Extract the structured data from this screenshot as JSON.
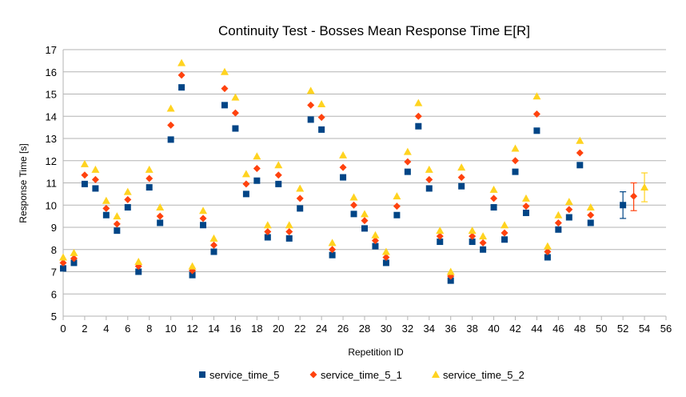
{
  "chart_data": {
    "type": "scatter",
    "title": "Continuity Test - Bosses Mean Response Time E[R]",
    "xlabel": "Repetition ID",
    "ylabel": "Response Time [s]",
    "xlim": [
      0,
      56
    ],
    "ylim": [
      5,
      17
    ],
    "xticks": [
      0,
      2,
      4,
      6,
      8,
      10,
      12,
      14,
      16,
      18,
      20,
      22,
      24,
      26,
      28,
      30,
      32,
      34,
      36,
      38,
      40,
      42,
      44,
      46,
      48,
      50,
      52,
      54,
      56
    ],
    "yticks": [
      5,
      6,
      7,
      8,
      9,
      10,
      11,
      12,
      13,
      14,
      15,
      16,
      17
    ],
    "grid": "horizontal",
    "legend_position": "bottom",
    "x": [
      0,
      1,
      2,
      3,
      4,
      5,
      6,
      7,
      8,
      9,
      10,
      11,
      12,
      13,
      14,
      15,
      16,
      17,
      18,
      19,
      20,
      21,
      22,
      23,
      24,
      25,
      26,
      27,
      28,
      29,
      30,
      31,
      32,
      33,
      34,
      35,
      36,
      37,
      38,
      39,
      40,
      41,
      42,
      43,
      44,
      45,
      46,
      47,
      48,
      49
    ],
    "series": [
      {
        "name": "service_time_5",
        "marker": "square",
        "color": "#004586",
        "values": [
          7.15,
          7.4,
          10.95,
          10.75,
          9.55,
          8.85,
          9.9,
          7.0,
          10.8,
          9.2,
          12.95,
          15.3,
          6.85,
          9.1,
          7.9,
          14.5,
          13.45,
          10.5,
          11.1,
          8.55,
          10.95,
          8.5,
          9.85,
          13.85,
          13.4,
          7.75,
          11.25,
          9.6,
          8.95,
          8.15,
          7.4,
          9.55,
          11.5,
          13.55,
          10.75,
          8.35,
          6.6,
          10.85,
          8.35,
          8.0,
          9.9,
          8.45,
          11.5,
          9.65,
          13.35,
          7.65,
          8.9,
          9.45,
          11.8,
          9.2
        ],
        "error_point": {
          "x": 52,
          "y": 10.0,
          "low": 9.4,
          "high": 10.6
        }
      },
      {
        "name": "service_time_5_1",
        "marker": "diamond",
        "color": "#ff420e",
        "values": [
          7.4,
          7.6,
          11.35,
          11.15,
          9.85,
          9.15,
          10.25,
          7.25,
          11.2,
          9.5,
          13.6,
          15.85,
          7.05,
          9.4,
          8.2,
          15.25,
          14.15,
          10.95,
          11.65,
          8.8,
          11.35,
          8.8,
          10.3,
          14.5,
          13.95,
          8.0,
          11.7,
          10.0,
          9.3,
          8.4,
          7.65,
          9.95,
          11.95,
          14.0,
          11.15,
          8.6,
          6.8,
          11.25,
          8.6,
          8.3,
          10.3,
          8.75,
          12.0,
          9.95,
          14.1,
          7.9,
          9.2,
          9.8,
          12.35,
          9.55
        ],
        "error_point": {
          "x": 53,
          "y": 10.4,
          "low": 9.75,
          "high": 11.0
        }
      },
      {
        "name": "service_time_5_2",
        "marker": "triangle",
        "color": "#ffd320",
        "values": [
          7.65,
          7.85,
          11.85,
          11.6,
          10.2,
          9.5,
          10.6,
          7.45,
          11.6,
          9.9,
          14.35,
          16.4,
          7.25,
          9.75,
          8.5,
          16.0,
          14.85,
          11.4,
          12.2,
          9.1,
          11.8,
          9.1,
          10.75,
          15.15,
          14.55,
          8.3,
          12.25,
          10.35,
          9.6,
          8.65,
          7.9,
          10.4,
          12.4,
          14.6,
          11.6,
          8.85,
          7.0,
          11.7,
          8.85,
          8.6,
          10.7,
          9.1,
          12.55,
          10.3,
          14.9,
          8.15,
          9.55,
          10.15,
          12.9,
          9.9
        ],
        "error_point": {
          "x": 54,
          "y": 10.8,
          "low": 10.15,
          "high": 11.45
        }
      }
    ]
  }
}
